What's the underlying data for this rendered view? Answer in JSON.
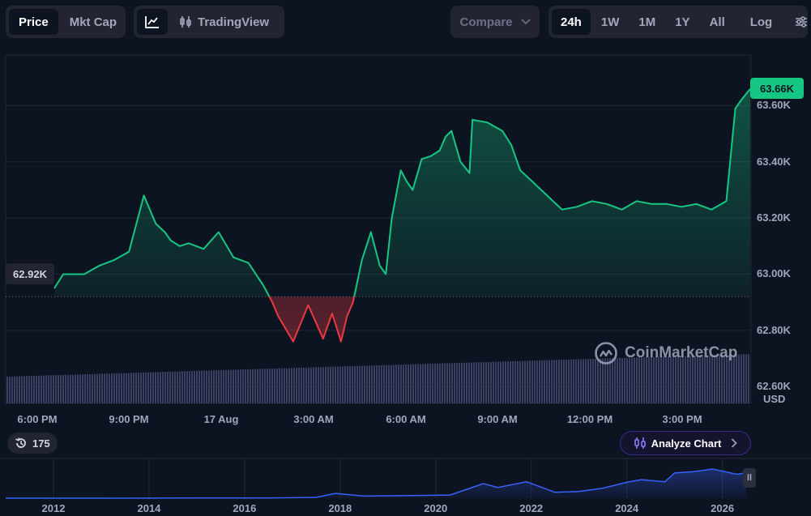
{
  "toolbar": {
    "view_tabs": [
      {
        "label": "Price",
        "active": true
      },
      {
        "label": "Mkt Cap",
        "active": false
      }
    ],
    "chart_type_icon": "line-chart-icon",
    "tradingview_label": "TradingView",
    "compare_label": "Compare",
    "ranges": [
      {
        "label": "24h",
        "active": true
      },
      {
        "label": "1W",
        "active": false
      },
      {
        "label": "1M",
        "active": false
      },
      {
        "label": "1Y",
        "active": false
      },
      {
        "label": "All",
        "active": false
      }
    ],
    "log_label": "Log"
  },
  "price_tag": "63.66K",
  "open_tag": "62.92K",
  "currency_label": "USD",
  "watermark": "CoinMarketCap",
  "history_count": "175",
  "analyze_label": "Analyze Chart",
  "colors": {
    "up": "#16c784",
    "down": "#ea3943",
    "background": "#0d1421",
    "panel": "#222531",
    "volume": "#3a4063",
    "overview": "#3861fb"
  },
  "chart_data": [
    {
      "type": "area",
      "title": "",
      "xlabel": "",
      "ylabel": "",
      "x_ticks": [
        "6:00 PM",
        "9:00 PM",
        "17 Aug",
        "3:00 AM",
        "6:00 AM",
        "9:00 AM",
        "12:00 PM",
        "3:00 PM"
      ],
      "y_ticks": [
        63600,
        63400,
        63200,
        63000,
        62800,
        62600
      ],
      "y_tick_labels": [
        "63.60K",
        "63.40K",
        "63.20K",
        "63.00K",
        "62.80K",
        "62.60K"
      ],
      "ylim": [
        62540,
        63780
      ],
      "baseline": 62920,
      "grid": true,
      "x": [
        0,
        0.3,
        0.6,
        1.0,
        1.5,
        2.0,
        2.5,
        3.0,
        3.4,
        3.7,
        3.9,
        4.2,
        4.5,
        5.0,
        5.5,
        6.0,
        6.5,
        7.0,
        7.3,
        7.5,
        8.0,
        8.5,
        9.0,
        9.3,
        9.6,
        9.8,
        10.0,
        10.3,
        10.6,
        10.9,
        11.1,
        11.3,
        11.6,
        11.8,
        12.0,
        12.3,
        12.6,
        12.9,
        13.1,
        13.3,
        13.6,
        13.9,
        14.0,
        14.5,
        15.0,
        15.3,
        15.6,
        16.0,
        16.5,
        17.0,
        17.5,
        18.0,
        18.5,
        19.0,
        19.5,
        20.0,
        20.5,
        21.0,
        21.5,
        22.0,
        22.5,
        22.8,
        23.0,
        23.3
      ],
      "values": [
        62950,
        63000,
        63000,
        63000,
        63030,
        63050,
        63080,
        63280,
        63180,
        63150,
        63120,
        63100,
        63110,
        63090,
        63150,
        63060,
        63040,
        62960,
        62900,
        62850,
        62760,
        62890,
        62770,
        62860,
        62760,
        62850,
        62900,
        63050,
        63150,
        63030,
        63000,
        63200,
        63370,
        63330,
        63300,
        63410,
        63420,
        63440,
        63490,
        63510,
        63400,
        63360,
        63550,
        63540,
        63510,
        63460,
        63370,
        63330,
        63280,
        63230,
        63240,
        63260,
        63250,
        63230,
        63260,
        63250,
        63250,
        63240,
        63250,
        63230,
        63260,
        63590,
        63620,
        63660
      ],
      "volume": "uniform bars rising slowly",
      "last_value": 63660
    },
    {
      "type": "area",
      "title": "",
      "x_ticks": [
        "2012",
        "2014",
        "2016",
        "2018",
        "2020",
        "2022",
        "2024",
        "2026"
      ],
      "x": [
        2011,
        2013,
        2015,
        2016.5,
        2017.5,
        2017.9,
        2018.5,
        2019.5,
        2020.3,
        2021.0,
        2021.3,
        2021.9,
        2022.5,
        2023.0,
        2023.5,
        2024.0,
        2024.3,
        2024.8,
        2025.0,
        2025.4,
        2025.8,
        2026.3,
        2026.5
      ],
      "values": [
        0,
        0,
        0.5,
        1,
        3,
        18,
        8,
        10,
        12,
        55,
        40,
        62,
        22,
        25,
        38,
        60,
        70,
        62,
        95,
        100,
        110,
        90,
        95
      ]
    }
  ]
}
